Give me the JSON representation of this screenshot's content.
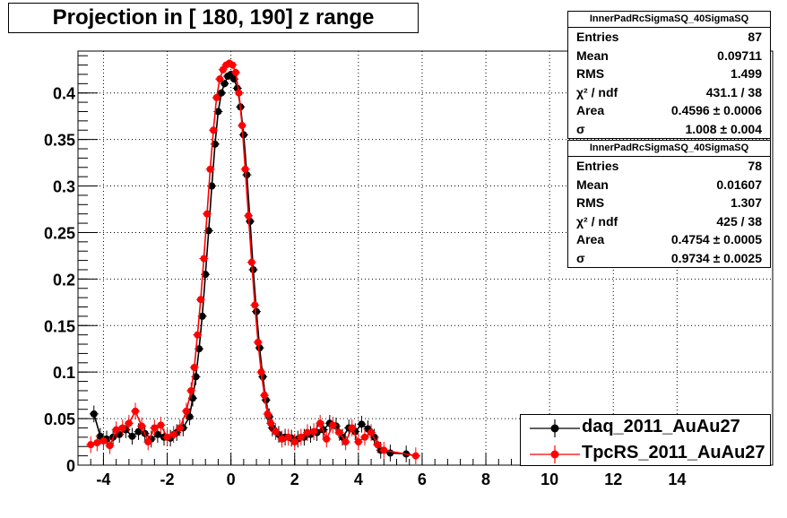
{
  "chart_data": {
    "type": "scatter",
    "title": "Projection in [ 180, 190] z range",
    "xlim": [
      -4.8,
      17.0
    ],
    "ylim": [
      0,
      0.445
    ],
    "x_ticks": [
      "-4",
      "-2",
      "0",
      "2",
      "4",
      "6",
      "8",
      "10",
      "12",
      "14"
    ],
    "y_ticks": [
      "0",
      "0.05",
      "0.1",
      "0.15",
      "0.2",
      "0.25",
      "0.3",
      "0.35",
      "0.4"
    ],
    "grid": true,
    "legend_position": "bottom-right",
    "series": [
      {
        "name": "daq_2011_AuAu27",
        "color": "#000000",
        "x": [
          -4.3,
          -4.1,
          -3.9,
          -3.7,
          -3.5,
          -3.3,
          -3.1,
          -2.9,
          -2.7,
          -2.5,
          -2.3,
          -2.1,
          -1.9,
          -1.7,
          -1.5,
          -1.3,
          -1.2,
          -1.1,
          -1.0,
          -0.9,
          -0.8,
          -0.7,
          -0.6,
          -0.5,
          -0.4,
          -0.3,
          -0.2,
          -0.1,
          0.0,
          0.1,
          0.2,
          0.3,
          0.4,
          0.5,
          0.6,
          0.7,
          0.8,
          0.9,
          1.0,
          1.1,
          1.2,
          1.3,
          1.5,
          1.7,
          1.9,
          2.1,
          2.3,
          2.5,
          2.7,
          2.9,
          3.1,
          3.3,
          3.5,
          3.7,
          3.9,
          4.1,
          4.3,
          4.5,
          4.7,
          5.0,
          5.5
        ],
        "y": [
          0.055,
          0.031,
          0.028,
          0.03,
          0.033,
          0.038,
          0.031,
          0.036,
          0.034,
          0.028,
          0.033,
          0.03,
          0.029,
          0.035,
          0.04,
          0.052,
          0.072,
          0.095,
          0.125,
          0.16,
          0.205,
          0.252,
          0.3,
          0.345,
          0.38,
          0.4,
          0.41,
          0.418,
          0.42,
          0.415,
          0.405,
          0.385,
          0.355,
          0.312,
          0.262,
          0.21,
          0.165,
          0.126,
          0.095,
          0.07,
          0.052,
          0.04,
          0.033,
          0.03,
          0.029,
          0.028,
          0.03,
          0.033,
          0.035,
          0.038,
          0.045,
          0.042,
          0.03,
          0.04,
          0.036,
          0.044,
          0.039,
          0.03,
          0.016,
          0.013,
          0.012
        ]
      },
      {
        "name": "TpcRS_2011_AuAu27",
        "color": "#ff0000",
        "x": [
          -4.4,
          -4.2,
          -4.0,
          -3.8,
          -3.6,
          -3.4,
          -3.2,
          -3.0,
          -2.8,
          -2.6,
          -2.4,
          -2.2,
          -2.0,
          -1.8,
          -1.6,
          -1.4,
          -1.25,
          -1.15,
          -1.05,
          -0.95,
          -0.85,
          -0.75,
          -0.65,
          -0.55,
          -0.45,
          -0.35,
          -0.25,
          -0.15,
          -0.05,
          0.05,
          0.15,
          0.25,
          0.35,
          0.45,
          0.55,
          0.65,
          0.75,
          0.85,
          0.95,
          1.05,
          1.15,
          1.25,
          1.4,
          1.6,
          1.8,
          2.0,
          2.2,
          2.4,
          2.6,
          2.8,
          3.0,
          3.2,
          3.4,
          3.6,
          3.8,
          4.0,
          4.2,
          4.4,
          4.6,
          4.8,
          5.8
        ],
        "y": [
          0.022,
          0.024,
          0.026,
          0.021,
          0.038,
          0.04,
          0.045,
          0.058,
          0.042,
          0.025,
          0.04,
          0.043,
          0.03,
          0.033,
          0.04,
          0.058,
          0.08,
          0.105,
          0.14,
          0.178,
          0.222,
          0.27,
          0.318,
          0.36,
          0.395,
          0.415,
          0.425,
          0.43,
          0.432,
          0.43,
          0.422,
          0.4,
          0.365,
          0.318,
          0.268,
          0.218,
          0.172,
          0.132,
          0.1,
          0.075,
          0.055,
          0.045,
          0.036,
          0.028,
          0.03,
          0.025,
          0.03,
          0.035,
          0.036,
          0.045,
          0.028,
          0.043,
          0.035,
          0.025,
          0.04,
          0.025,
          0.03,
          0.035,
          0.022,
          0.016,
          0.01
        ]
      }
    ]
  },
  "stats_boxes": [
    {
      "header": "InnerPadRcSigmaSQ_40SigmaSQ",
      "rows": [
        {
          "key": "Entries",
          "value": "87"
        },
        {
          "key": "Mean",
          "value": "0.09711"
        },
        {
          "key": "RMS",
          "value": "1.499"
        },
        {
          "key": "χ² / ndf",
          "value": "431.1 / 38"
        },
        {
          "key": "Area",
          "value": "0.4596 ± 0.0006"
        },
        {
          "key": "σ",
          "value": "1.008 ± 0.004"
        }
      ]
    },
    {
      "header": "InnerPadRcSigmaSQ_40SigmaSQ",
      "rows": [
        {
          "key": "Entries",
          "value": "78"
        },
        {
          "key": "Mean",
          "value": "0.01607"
        },
        {
          "key": "RMS",
          "value": "1.307"
        },
        {
          "key": "χ² / ndf",
          "value": "425 / 38"
        },
        {
          "key": "Area",
          "value": "0.4754 ± 0.0005"
        },
        {
          "key": "σ",
          "value": "0.9734 ± 0.0025"
        }
      ]
    }
  ]
}
